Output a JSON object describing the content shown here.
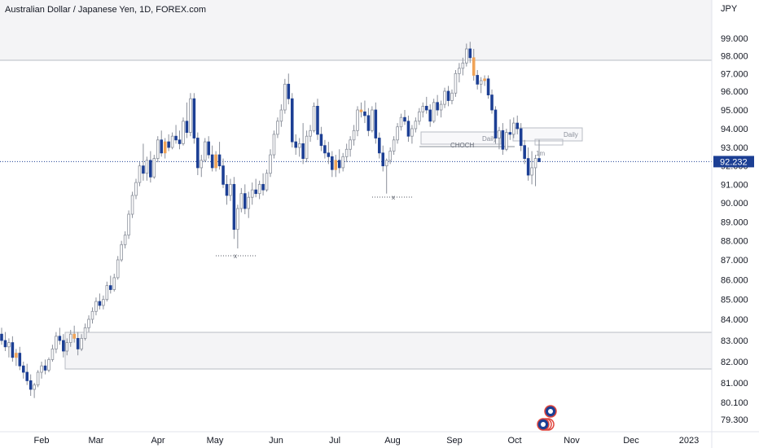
{
  "chart_data": {
    "type": "candlestick",
    "title": "Australian Dollar / Japanese Yen, 1D, FOREX.com",
    "currency_label": "JPY",
    "current_price": 92.232,
    "current_price_label": "92.232",
    "ylim": [
      78.9,
      100.6
    ],
    "y_ticks": [
      "99.000",
      "98.000",
      "97.000",
      "96.000",
      "95.000",
      "94.000",
      "93.000",
      "92.000",
      "91.000",
      "90.000",
      "89.000",
      "88.000",
      "87.000",
      "86.000",
      "85.000",
      "84.000",
      "83.000",
      "82.000",
      "81.000",
      "80.100",
      "79.300"
    ],
    "x_ticks": [
      "Feb",
      "Mar",
      "Apr",
      "May",
      "Jun",
      "Jul",
      "Aug",
      "Sep",
      "Oct",
      "Nov",
      "Dec",
      "2023"
    ],
    "colors": {
      "up": "#ffffff",
      "down": "#1c3f94",
      "outline": "#8a8f9a",
      "highlight": "#f0a356",
      "price_tag": "#1c3f94",
      "zone_fill": "#f4f4f6",
      "zone_border": "#b8bcc4"
    },
    "annotations": {
      "daily_label_1": "Daily",
      "daily_label_2": "Daily",
      "choch_label": "CHOCH",
      "tf_label": "1m",
      "x_marker": "x"
    },
    "candles": [
      [
        83.3,
        83.6,
        82.8,
        83.0
      ],
      [
        83.0,
        83.4,
        82.5,
        82.7
      ],
      [
        82.7,
        83.1,
        82.2,
        82.9
      ],
      [
        82.9,
        83.2,
        82.0,
        82.2
      ],
      [
        82.2,
        82.6,
        81.8,
        82.4
      ],
      [
        82.4,
        82.7,
        81.6,
        81.8
      ],
      [
        81.8,
        82.0,
        81.2,
        81.5
      ],
      [
        81.5,
        81.9,
        80.9,
        81.1
      ],
      [
        81.1,
        81.4,
        80.4,
        80.7
      ],
      [
        80.7,
        81.0,
        80.3,
        80.9
      ],
      [
        80.9,
        81.6,
        80.8,
        81.5
      ],
      [
        81.5,
        82.0,
        81.2,
        81.8
      ],
      [
        81.8,
        82.1,
        81.4,
        81.6
      ],
      [
        81.6,
        82.2,
        81.5,
        82.1
      ],
      [
        82.1,
        82.8,
        82.0,
        82.6
      ],
      [
        82.6,
        83.4,
        82.4,
        83.2
      ],
      [
        83.2,
        83.6,
        82.8,
        83.0
      ],
      [
        83.0,
        83.3,
        82.2,
        82.5
      ],
      [
        82.5,
        83.1,
        82.3,
        82.9
      ],
      [
        82.9,
        83.5,
        82.7,
        83.3
      ],
      [
        83.3,
        83.7,
        82.9,
        83.1
      ],
      [
        83.1,
        83.4,
        82.3,
        82.6
      ],
      [
        82.6,
        83.3,
        82.5,
        83.1
      ],
      [
        83.1,
        83.8,
        83.0,
        83.6
      ],
      [
        83.6,
        84.2,
        83.4,
        84.0
      ],
      [
        84.0,
        84.6,
        83.8,
        84.4
      ],
      [
        84.4,
        85.1,
        84.2,
        84.9
      ],
      [
        84.9,
        85.3,
        84.5,
        84.7
      ],
      [
        84.7,
        85.2,
        84.5,
        85.0
      ],
      [
        85.0,
        85.9,
        84.9,
        85.7
      ],
      [
        85.7,
        86.2,
        85.3,
        85.5
      ],
      [
        85.5,
        86.3,
        85.4,
        86.1
      ],
      [
        86.1,
        87.2,
        86.0,
        87.0
      ],
      [
        87.0,
        88.0,
        86.9,
        87.8
      ],
      [
        87.8,
        88.5,
        87.6,
        88.3
      ],
      [
        88.3,
        89.6,
        88.1,
        89.4
      ],
      [
        89.4,
        90.6,
        89.2,
        90.4
      ],
      [
        90.4,
        91.3,
        90.2,
        91.1
      ],
      [
        91.1,
        92.2,
        90.9,
        92.0
      ],
      [
        92.0,
        93.2,
        91.2,
        91.6
      ],
      [
        91.6,
        92.5,
        91.2,
        92.3
      ],
      [
        92.3,
        92.8,
        91.1,
        91.4
      ],
      [
        91.4,
        92.6,
        91.3,
        92.4
      ],
      [
        92.4,
        93.6,
        92.2,
        93.4
      ],
      [
        93.4,
        93.9,
        92.5,
        92.7
      ],
      [
        92.7,
        93.5,
        92.4,
        93.3
      ],
      [
        93.3,
        93.7,
        92.8,
        93.0
      ],
      [
        93.0,
        93.8,
        92.9,
        93.6
      ],
      [
        93.6,
        94.2,
        93.2,
        93.4
      ],
      [
        93.4,
        93.9,
        92.9,
        93.2
      ],
      [
        93.2,
        94.6,
        93.1,
        94.4
      ],
      [
        94.4,
        95.4,
        93.5,
        93.8
      ],
      [
        93.8,
        95.9,
        93.6,
        95.6
      ],
      [
        95.6,
        95.9,
        93.2,
        93.5
      ],
      [
        93.5,
        93.8,
        91.5,
        91.9
      ],
      [
        91.9,
        92.6,
        91.4,
        92.3
      ],
      [
        92.3,
        93.5,
        92.2,
        93.3
      ],
      [
        93.3,
        93.6,
        92.4,
        92.6
      ],
      [
        92.6,
        93.1,
        91.7,
        91.9
      ],
      [
        91.9,
        92.8,
        91.7,
        92.6
      ],
      [
        92.6,
        93.3,
        91.8,
        92.0
      ],
      [
        92.0,
        92.4,
        90.8,
        91.0
      ],
      [
        91.0,
        91.5,
        89.9,
        90.4
      ],
      [
        90.4,
        91.3,
        90.1,
        91.0
      ],
      [
        91.0,
        91.4,
        88.1,
        88.6
      ],
      [
        88.6,
        89.9,
        87.6,
        89.7
      ],
      [
        89.7,
        90.8,
        89.5,
        90.5
      ],
      [
        90.5,
        91.0,
        89.4,
        89.7
      ],
      [
        89.7,
        90.6,
        89.2,
        90.3
      ],
      [
        90.3,
        91.1,
        89.9,
        90.7
      ],
      [
        90.7,
        91.3,
        90.3,
        90.5
      ],
      [
        90.5,
        91.2,
        90.2,
        91.0
      ],
      [
        91.0,
        91.6,
        90.4,
        90.7
      ],
      [
        90.7,
        91.8,
        90.6,
        91.6
      ],
      [
        91.6,
        92.9,
        91.4,
        92.6
      ],
      [
        92.6,
        93.9,
        92.4,
        93.7
      ],
      [
        93.7,
        94.6,
        93.5,
        94.4
      ],
      [
        94.4,
        95.3,
        94.1,
        95.0
      ],
      [
        95.0,
        96.7,
        94.8,
        96.4
      ],
      [
        96.4,
        97.0,
        95.3,
        95.6
      ],
      [
        95.6,
        95.9,
        93.0,
        93.3
      ],
      [
        93.3,
        93.7,
        92.6,
        93.0
      ],
      [
        93.0,
        93.5,
        92.5,
        93.2
      ],
      [
        93.2,
        94.3,
        92.1,
        92.4
      ],
      [
        92.4,
        93.9,
        92.2,
        93.6
      ],
      [
        93.6,
        94.2,
        93.3,
        93.9
      ],
      [
        93.9,
        95.4,
        93.8,
        95.2
      ],
      [
        95.2,
        95.6,
        93.4,
        93.7
      ],
      [
        93.7,
        94.1,
        92.8,
        93.1
      ],
      [
        93.1,
        93.4,
        92.4,
        92.7
      ],
      [
        92.7,
        93.3,
        92.1,
        92.5
      ],
      [
        92.5,
        92.8,
        91.4,
        91.8
      ],
      [
        91.8,
        92.6,
        91.4,
        92.3
      ],
      [
        92.3,
        92.9,
        91.6,
        91.9
      ],
      [
        91.9,
        92.7,
        91.7,
        92.5
      ],
      [
        92.5,
        93.2,
        92.2,
        92.9
      ],
      [
        92.9,
        93.6,
        92.5,
        93.4
      ],
      [
        93.4,
        94.2,
        93.1,
        93.9
      ],
      [
        93.9,
        95.2,
        93.6,
        95.0
      ],
      [
        95.0,
        95.4,
        94.6,
        94.9
      ],
      [
        94.9,
        95.5,
        94.3,
        94.7
      ],
      [
        94.7,
        95.1,
        93.6,
        93.9
      ],
      [
        93.9,
        95.2,
        93.8,
        95.0
      ],
      [
        95.0,
        95.4,
        93.2,
        93.5
      ],
      [
        93.5,
        93.8,
        92.4,
        92.7
      ],
      [
        92.7,
        93.1,
        91.7,
        92.0
      ],
      [
        92.0,
        92.4,
        90.5,
        92.3
      ],
      [
        92.3,
        93.0,
        92.1,
        92.8
      ],
      [
        92.8,
        93.6,
        92.6,
        93.4
      ],
      [
        93.4,
        94.3,
        93.2,
        94.1
      ],
      [
        94.1,
        94.8,
        93.9,
        94.6
      ],
      [
        94.6,
        95.0,
        94.2,
        94.4
      ],
      [
        94.4,
        94.7,
        93.3,
        93.6
      ],
      [
        93.6,
        94.2,
        93.2,
        94.0
      ],
      [
        94.0,
        94.6,
        93.8,
        94.4
      ],
      [
        94.4,
        95.1,
        94.2,
        94.9
      ],
      [
        94.9,
        95.4,
        94.6,
        95.2
      ],
      [
        95.2,
        95.7,
        94.8,
        95.0
      ],
      [
        95.0,
        95.3,
        94.1,
        94.4
      ],
      [
        94.4,
        95.6,
        94.3,
        95.4
      ],
      [
        95.4,
        95.8,
        94.7,
        95.0
      ],
      [
        95.0,
        95.5,
        94.6,
        95.3
      ],
      [
        95.3,
        96.2,
        95.1,
        96.0
      ],
      [
        96.0,
        96.3,
        95.2,
        95.5
      ],
      [
        95.5,
        96.1,
        95.3,
        95.9
      ],
      [
        95.9,
        97.2,
        95.7,
        97.0
      ],
      [
        97.0,
        97.6,
        96.5,
        97.3
      ],
      [
        97.3,
        97.9,
        96.9,
        97.6
      ],
      [
        97.6,
        98.7,
        97.4,
        98.4
      ],
      [
        98.4,
        98.8,
        97.6,
        97.9
      ],
      [
        97.9,
        98.4,
        96.6,
        96.9
      ],
      [
        96.9,
        97.2,
        96.1,
        96.4
      ],
      [
        96.4,
        96.8,
        95.9,
        96.6
      ],
      [
        96.6,
        96.9,
        96.3,
        96.7
      ],
      [
        96.7,
        96.9,
        95.6,
        95.8
      ],
      [
        95.8,
        96.1,
        94.8,
        95.0
      ],
      [
        95.0,
        95.2,
        93.2,
        93.5
      ],
      [
        93.5,
        94.1,
        92.9,
        93.9
      ],
      [
        93.9,
        94.3,
        92.6,
        92.9
      ],
      [
        92.9,
        94.0,
        92.8,
        93.8
      ],
      [
        93.8,
        94.5,
        93.4,
        93.7
      ],
      [
        93.7,
        94.6,
        93.5,
        94.3
      ],
      [
        94.3,
        94.7,
        93.7,
        94.0
      ],
      [
        94.0,
        94.3,
        92.8,
        93.1
      ],
      [
        93.1,
        93.4,
        92.1,
        92.4
      ],
      [
        92.4,
        93.0,
        91.2,
        91.5
      ],
      [
        91.5,
        92.8,
        91.0,
        91.9
      ],
      [
        91.9,
        92.6,
        90.9,
        92.4
      ],
      [
        92.4,
        93.4,
        92.2,
        92.232
      ]
    ]
  }
}
